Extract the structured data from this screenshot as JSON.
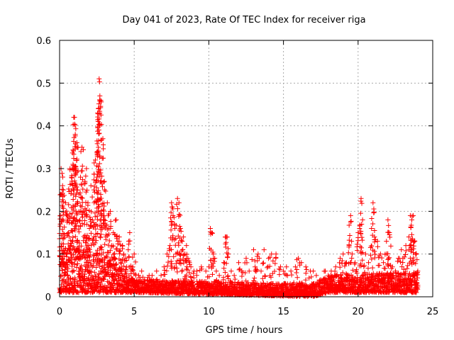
{
  "chart_data": {
    "type": "scatter",
    "title": "Day 041 of 2023, Rate Of TEC Index for receiver riga",
    "xlabel": "GPS time / hours",
    "ylabel": "ROTI / TECUs",
    "xlim": [
      0,
      25
    ],
    "ylim": [
      0,
      0.6
    ],
    "xticks": [
      0,
      5,
      10,
      15,
      20,
      25
    ],
    "xtick_labels": [
      "0",
      "5",
      "10",
      "15",
      "20",
      "25"
    ],
    "yticks": [
      0,
      0.1,
      0.2,
      0.3,
      0.4,
      0.5,
      0.6
    ],
    "ytick_labels": [
      "0",
      "0.1",
      "0.2",
      "0.3",
      "0.4",
      "0.5",
      "0.6"
    ],
    "grid": true,
    "marker": "+",
    "color": "#ff0000",
    "series": [
      {
        "name": "ROTI",
        "points": [
          [
            0.0,
            0.02
          ],
          [
            0.05,
            0.19
          ],
          [
            0.1,
            0.3
          ],
          [
            0.15,
            0.05
          ],
          [
            0.2,
            0.26
          ],
          [
            0.25,
            0.25
          ],
          [
            0.3,
            0.1
          ],
          [
            0.4,
            0.22
          ],
          [
            0.45,
            0.08
          ],
          [
            0.5,
            0.19
          ],
          [
            0.55,
            0.05
          ],
          [
            0.6,
            0.15
          ],
          [
            0.7,
            0.3
          ],
          [
            0.75,
            0.12
          ],
          [
            0.8,
            0.28
          ],
          [
            0.85,
            0.06
          ],
          [
            0.9,
            0.31
          ],
          [
            0.95,
            0.42
          ],
          [
            1.0,
            0.42
          ],
          [
            1.05,
            0.38
          ],
          [
            1.1,
            0.2
          ],
          [
            1.15,
            0.35
          ],
          [
            1.2,
            0.25
          ],
          [
            1.3,
            0.24
          ],
          [
            1.35,
            0.1
          ],
          [
            1.4,
            0.28
          ],
          [
            1.5,
            0.35
          ],
          [
            1.55,
            0.06
          ],
          [
            1.6,
            0.2
          ],
          [
            1.7,
            0.27
          ],
          [
            1.8,
            0.3
          ],
          [
            1.85,
            0.12
          ],
          [
            1.9,
            0.22
          ],
          [
            2.0,
            0.16
          ],
          [
            2.1,
            0.26
          ],
          [
            2.2,
            0.18
          ],
          [
            2.3,
            0.25
          ],
          [
            2.4,
            0.32
          ],
          [
            2.5,
            0.28
          ],
          [
            2.55,
            0.43
          ],
          [
            2.6,
            0.44
          ],
          [
            2.65,
            0.51
          ],
          [
            2.7,
            0.47
          ],
          [
            2.75,
            0.29
          ],
          [
            2.8,
            0.19
          ],
          [
            2.9,
            0.37
          ],
          [
            3.0,
            0.27
          ],
          [
            3.1,
            0.14
          ],
          [
            3.2,
            0.22
          ],
          [
            3.3,
            0.16
          ],
          [
            3.4,
            0.2
          ],
          [
            3.5,
            0.12
          ],
          [
            3.6,
            0.15
          ],
          [
            3.7,
            0.09
          ],
          [
            3.8,
            0.18
          ],
          [
            3.9,
            0.13
          ],
          [
            4.0,
            0.14
          ],
          [
            4.1,
            0.08
          ],
          [
            4.2,
            0.12
          ],
          [
            4.3,
            0.1
          ],
          [
            4.4,
            0.09
          ],
          [
            4.5,
            0.07
          ],
          [
            4.6,
            0.11
          ],
          [
            4.7,
            0.15
          ],
          [
            4.8,
            0.06
          ],
          [
            4.9,
            0.07
          ],
          [
            5.0,
            0.1
          ],
          [
            5.1,
            0.05
          ],
          [
            5.3,
            0.05
          ],
          [
            5.5,
            0.06
          ],
          [
            5.7,
            0.04
          ],
          [
            6.0,
            0.05
          ],
          [
            6.2,
            0.05
          ],
          [
            6.5,
            0.06
          ],
          [
            6.8,
            0.05
          ],
          [
            7.0,
            0.07
          ],
          [
            7.2,
            0.1
          ],
          [
            7.4,
            0.12
          ],
          [
            7.5,
            0.22
          ],
          [
            7.6,
            0.19
          ],
          [
            7.7,
            0.17
          ],
          [
            7.8,
            0.1
          ],
          [
            7.9,
            0.23
          ],
          [
            8.0,
            0.22
          ],
          [
            8.1,
            0.16
          ],
          [
            8.2,
            0.13
          ],
          [
            8.3,
            0.14
          ],
          [
            8.4,
            0.1
          ],
          [
            8.5,
            0.12
          ],
          [
            8.6,
            0.09
          ],
          [
            8.7,
            0.08
          ],
          [
            8.8,
            0.07
          ],
          [
            9.0,
            0.06
          ],
          [
            9.2,
            0.06
          ],
          [
            9.5,
            0.07
          ],
          [
            9.8,
            0.06
          ],
          [
            10.0,
            0.07
          ],
          [
            10.1,
            0.16
          ],
          [
            10.2,
            0.15
          ],
          [
            10.3,
            0.1
          ],
          [
            10.5,
            0.06
          ],
          [
            10.7,
            0.05
          ],
          [
            11.0,
            0.08
          ],
          [
            11.1,
            0.14
          ],
          [
            11.2,
            0.14
          ],
          [
            11.3,
            0.1
          ],
          [
            11.5,
            0.06
          ],
          [
            11.7,
            0.05
          ],
          [
            12.0,
            0.08
          ],
          [
            12.2,
            0.06
          ],
          [
            12.5,
            0.09
          ],
          [
            12.7,
            0.06
          ],
          [
            13.0,
            0.11
          ],
          [
            13.1,
            0.07
          ],
          [
            13.3,
            0.1
          ],
          [
            13.5,
            0.06
          ],
          [
            13.7,
            0.11
          ],
          [
            14.0,
            0.09
          ],
          [
            14.2,
            0.1
          ],
          [
            14.5,
            0.1
          ],
          [
            14.8,
            0.07
          ],
          [
            15.0,
            0.06
          ],
          [
            15.2,
            0.07
          ],
          [
            15.5,
            0.06
          ],
          [
            15.8,
            0.07
          ],
          [
            16.0,
            0.09
          ],
          [
            16.2,
            0.08
          ],
          [
            16.5,
            0.07
          ],
          [
            16.8,
            0.06
          ],
          [
            17.0,
            0.06
          ],
          [
            17.2,
            0.05
          ],
          [
            17.5,
            0.04
          ],
          [
            17.8,
            0.06
          ],
          [
            18.0,
            0.05
          ],
          [
            18.2,
            0.06
          ],
          [
            18.5,
            0.07
          ],
          [
            18.8,
            0.09
          ],
          [
            19.0,
            0.1
          ],
          [
            19.2,
            0.08
          ],
          [
            19.4,
            0.12
          ],
          [
            19.5,
            0.19
          ],
          [
            19.6,
            0.1
          ],
          [
            19.8,
            0.08
          ],
          [
            20.0,
            0.15
          ],
          [
            20.1,
            0.16
          ],
          [
            20.2,
            0.23
          ],
          [
            20.3,
            0.18
          ],
          [
            20.5,
            0.1
          ],
          [
            20.7,
            0.08
          ],
          [
            20.9,
            0.16
          ],
          [
            21.0,
            0.22
          ],
          [
            21.1,
            0.14
          ],
          [
            21.3,
            0.13
          ],
          [
            21.5,
            0.1
          ],
          [
            21.7,
            0.08
          ],
          [
            21.9,
            0.13
          ],
          [
            22.0,
            0.18
          ],
          [
            22.1,
            0.15
          ],
          [
            22.3,
            0.07
          ],
          [
            22.5,
            0.06
          ],
          [
            22.7,
            0.09
          ],
          [
            22.9,
            0.11
          ],
          [
            23.0,
            0.09
          ],
          [
            23.2,
            0.12
          ],
          [
            23.4,
            0.14
          ],
          [
            23.5,
            0.19
          ],
          [
            23.6,
            0.18
          ],
          [
            23.7,
            0.19
          ],
          [
            23.8,
            0.13
          ],
          [
            23.9,
            0.1
          ],
          [
            24.0,
            0.06
          ]
        ],
        "baseline": {
          "note": "dense cloud of values near the baseline across all 24 hours",
          "hours": [
            0,
            3,
            5,
            17,
            18,
            24
          ],
          "typical_max": [
            0.12,
            0.1,
            0.04,
            0.03,
            0.05,
            0.06
          ],
          "typical_min": [
            0.01,
            0.01,
            0.01,
            0.0,
            0.01,
            0.01
          ]
        }
      }
    ]
  }
}
